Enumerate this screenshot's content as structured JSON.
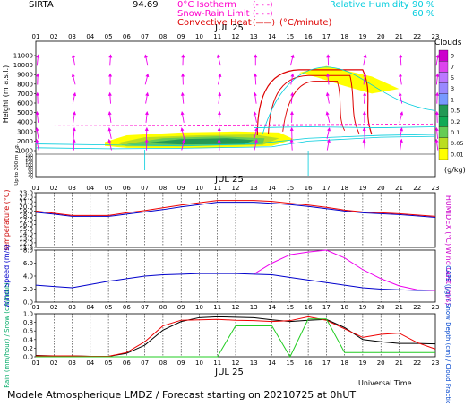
{
  "header": {
    "station": "SIRTA",
    "coord_text": "94.69",
    "legend_items": [
      {
        "label": "0°C Isotherm",
        "swatch": "(- - -)",
        "color": "#ff00cc"
      },
      {
        "label": "Snow-Rain Limit",
        "swatch": "(- - -)",
        "color": "#ff00cc"
      },
      {
        "label": "Convective Heat",
        "swatch": "(——)",
        "color": "#dd0000",
        "unit": "(°C/minute)"
      }
    ],
    "rh_label": "Relative Humidity",
    "rh_levels": [
      "90 %",
      "60 %"
    ],
    "rh_color": "#00ccdd"
  },
  "chart_data": [
    {
      "type": "heatmap",
      "title": "JUL 25",
      "ylabel": "Height (m a.s.l.)",
      "ylabel_low": "Up to 200 m a.g.l.",
      "ytick_labels": [
        "11000",
        "10000",
        "9000",
        "8000",
        "7000",
        "6000",
        "5000",
        "4000",
        "3000",
        "2000",
        "1000",
        "180",
        "160",
        "140",
        "120",
        "100",
        "80",
        "60",
        "40",
        "20",
        "0"
      ],
      "x_hours": [
        "01",
        "02",
        "03",
        "04",
        "05",
        "06",
        "07",
        "08",
        "09",
        "10",
        "11",
        "12",
        "13",
        "14",
        "15",
        "16",
        "17",
        "18",
        "19",
        "20",
        "21",
        "22",
        "23"
      ],
      "colorbar": {
        "label": "Clouds",
        "unit": "(g/kg)",
        "levels": [
          "9",
          "7",
          "5",
          "3",
          "1",
          "0.5",
          "0.2",
          "0.1",
          "0.05",
          "0.01"
        ],
        "colors": [
          "#cc00cc",
          "#dd44ee",
          "#bb77ff",
          "#9988ff",
          "#7799ff",
          "#229955",
          "#11aa55",
          "#66cc55",
          "#bbdd22",
          "#ffff00"
        ]
      }
    },
    {
      "type": "line",
      "title": "JUL 25",
      "ylabel": "Temperature (°C)",
      "ylabel_right": "HUMIDEX (°C)",
      "ytick_labels": [
        "23.0",
        "22.0",
        "21.0",
        "20.0",
        "19.0",
        "18.0",
        "17.0",
        "16.0",
        "15.0",
        "14.0",
        "13.0",
        "12.0",
        "11.0"
      ],
      "ylim": [
        11,
        23
      ],
      "x": [
        1,
        2,
        3,
        4,
        5,
        6,
        7,
        8,
        9,
        10,
        11,
        12,
        13,
        14,
        15,
        16,
        17,
        18,
        19,
        20,
        21,
        22,
        23
      ],
      "series": [
        {
          "values": [
            18.7,
            18.3,
            17.8,
            17.8,
            17.8,
            18.3,
            18.8,
            19.3,
            19.9,
            20.4,
            20.9,
            20.9,
            20.9,
            20.7,
            20.4,
            20.0,
            19.5,
            19.0,
            18.6,
            18.4,
            18.2,
            17.9,
            17.6
          ],
          "color": "#0000cc"
        },
        {
          "values": [
            19.0,
            18.5,
            18.0,
            18.0,
            18.0,
            18.6,
            19.1,
            19.7,
            20.3,
            20.8,
            21.3,
            21.3,
            21.3,
            21.1,
            20.7,
            20.3,
            19.8,
            19.2,
            18.8,
            18.6,
            18.4,
            18.1,
            17.8
          ],
          "color": "#ee0000"
        }
      ]
    },
    {
      "type": "line",
      "ylabel": "Wind Speed (m/s)",
      "ylabel_right": "Wind Gust (m/s)",
      "ytick_labels": [
        "0.0",
        "2.0",
        "4.0",
        "6.0",
        "8.0"
      ],
      "ylim": [
        0,
        8
      ],
      "x": [
        1,
        2,
        3,
        4,
        5,
        6,
        7,
        8,
        9,
        10,
        11,
        12,
        13,
        14,
        15,
        16,
        17,
        18,
        19,
        20,
        21,
        22,
        23
      ],
      "series": [
        {
          "values": [
            2.6,
            2.4,
            2.2,
            2.7,
            3.2,
            3.6,
            4.0,
            4.2,
            4.3,
            4.4,
            4.4,
            4.4,
            4.3,
            4.2,
            3.8,
            3.4,
            3.0,
            2.6,
            2.2,
            2.0,
            1.9,
            1.8,
            1.8
          ],
          "color": "#0000cc"
        },
        {
          "values": [
            null,
            null,
            null,
            null,
            null,
            null,
            null,
            null,
            null,
            null,
            null,
            null,
            4.3,
            6.0,
            7.3,
            7.7,
            8.0,
            6.8,
            5.0,
            3.6,
            2.5,
            1.9,
            1.8
          ],
          "color": "#ee00ee"
        }
      ]
    },
    {
      "type": "line",
      "title": "JUL 25",
      "xlabel": "Universal Time",
      "ylabel_left": "Rain (mm/hour) / Snow (cm/hour)",
      "ylabel_right": "CAPE (J/g) / Snow Depth (cm) / Cloud Fraction",
      "ytick_labels": [
        "0.0",
        "0.2",
        "0.4",
        "0.6",
        "0.8",
        "1.0"
      ],
      "ylim": [
        0,
        1
      ],
      "x": [
        1,
        2,
        3,
        4,
        5,
        6,
        7,
        8,
        9,
        10,
        11,
        12,
        13,
        14,
        15,
        16,
        17,
        18,
        19,
        20,
        21,
        22,
        23
      ],
      "series": [
        {
          "values": [
            0.03,
            0.02,
            0.02,
            0.01,
            0.01,
            0.08,
            0.27,
            0.62,
            0.82,
            0.91,
            0.93,
            0.92,
            0.91,
            0.86,
            0.82,
            0.85,
            0.87,
            0.68,
            0.4,
            0.35,
            0.31,
            0.31,
            0.3
          ],
          "color": "#000000"
        },
        {
          "values": [
            0.02,
            0.02,
            0.02,
            0.01,
            0.01,
            0.1,
            0.35,
            0.72,
            0.85,
            0.86,
            0.87,
            0.85,
            0.84,
            0.82,
            0.84,
            0.93,
            0.85,
            0.65,
            0.45,
            0.52,
            0.55,
            0.33,
            0.18
          ],
          "color": "#ee0000"
        },
        {
          "values": [
            0,
            0,
            0,
            0,
            0,
            0,
            0,
            0,
            0,
            0,
            0,
            0.72,
            0.72,
            0.72,
            0.0,
            0.88,
            0.88,
            0.1,
            0.1,
            0.1,
            0.1,
            0.1,
            0.1
          ],
          "color": "#22cc22"
        }
      ]
    }
  ],
  "footer": {
    "text": "Modele Atmospherique LMDZ / Forecast starting on 20210725 at 0hUT"
  }
}
